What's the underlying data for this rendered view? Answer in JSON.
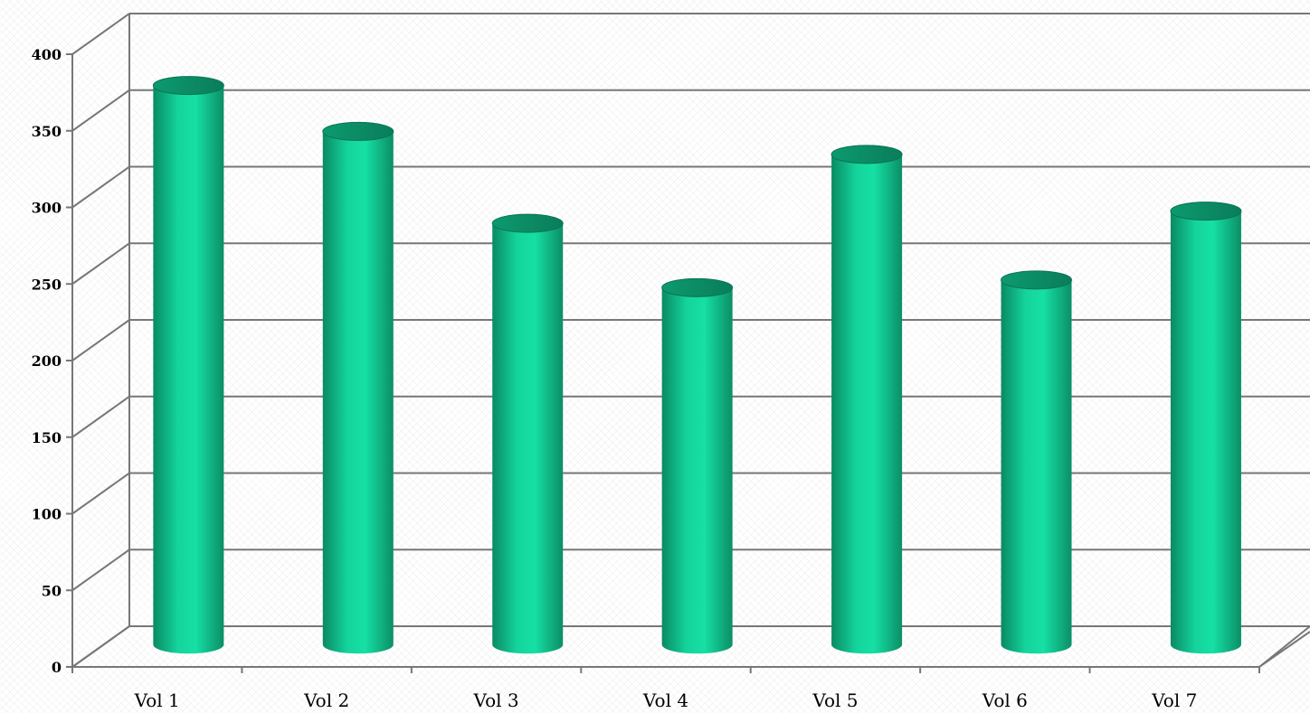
{
  "chart_data": {
    "type": "bar",
    "style": "3d-cylinder",
    "categories": [
      "Vol 1",
      "Vol 2",
      "Vol 3",
      "Vol 4",
      "Vol 5",
      "Vol 6",
      "Vol 7"
    ],
    "values": [
      365,
      335,
      275,
      233,
      320,
      238,
      283
    ],
    "ylim": [
      0,
      400
    ],
    "yticks": [
      "0",
      "50",
      "100",
      "150",
      "200",
      "250",
      "300",
      "350",
      "400"
    ],
    "grid": true,
    "legend": "none",
    "title": "",
    "xlabel": "",
    "ylabel": "",
    "colors": {
      "bar_light": "#16e0a4",
      "bar_mid": "#0fb886",
      "bar_dark": "#0a7d5a",
      "grid": "#777777"
    }
  }
}
